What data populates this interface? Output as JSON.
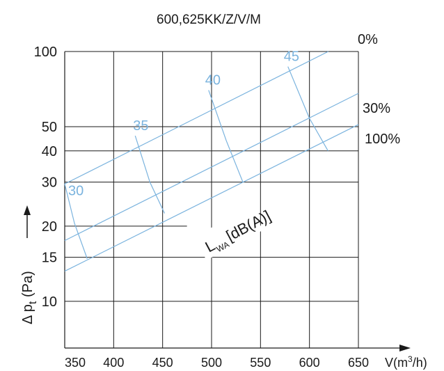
{
  "chart_data": {
    "type": "line",
    "title": "600,625KK/Z/V/M",
    "xlabel": "V(m³/h)",
    "ylabel": "Δ p_t (Pa)",
    "xlim": [
      350,
      650
    ],
    "ylim": [
      6.5,
      100
    ],
    "yscale": "log",
    "x_ticks": [
      350,
      400,
      450,
      500,
      550,
      600,
      650
    ],
    "y_ticks": [
      10,
      15,
      20,
      30,
      40,
      50,
      100
    ],
    "x_gridlines": [
      400,
      450,
      500,
      550,
      600,
      650
    ],
    "y_gridlines": [
      10,
      15,
      20,
      30,
      40,
      50,
      100
    ],
    "grid": true,
    "line_color": "#7ab3de",
    "series": [
      {
        "name": "0%",
        "x": [
          350,
          650
        ],
        "y": [
          29.5,
          115
        ]
      },
      {
        "name": "30%",
        "x": [
          350,
          650
        ],
        "y": [
          17.5,
          68
        ]
      },
      {
        "name": "100%",
        "x": [
          350,
          650
        ],
        "y": [
          13.2,
          51
        ]
      }
    ],
    "iso_lines": [
      {
        "label": "30",
        "x": [
          350,
          360,
          373
        ],
        "y": [
          29.5,
          20.5,
          14.8
        ]
      },
      {
        "label": "35",
        "x": [
          422,
          437,
          452
        ],
        "y": [
          46,
          30,
          22.5
        ]
      },
      {
        "label": "40",
        "x": [
          497,
          515,
          532
        ],
        "y": [
          70,
          44,
          30
        ]
      },
      {
        "label": "45",
        "x": [
          578,
          600,
          619
        ],
        "y": [
          87,
          54,
          40
        ]
      }
    ],
    "annotation": "L_WA [dB(A)]"
  }
}
